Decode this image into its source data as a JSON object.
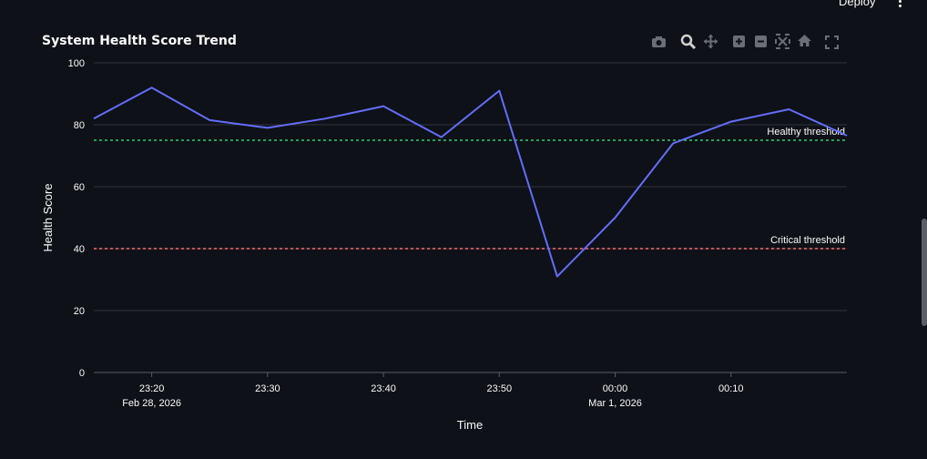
{
  "header": {
    "deploy_label": "Deploy",
    "menu_icon": "kebab-menu-icon"
  },
  "modebar": {
    "icons": [
      "camera-icon",
      "zoom-icon",
      "pan-icon",
      "zoom-in-icon",
      "zoom-out-icon",
      "autoscale-icon",
      "home-icon",
      "fullscreen-icon"
    ]
  },
  "colors": {
    "background": "#0e1117",
    "line": "#636efa",
    "healthy": "#2ecc71",
    "critical": "#ff6b6b",
    "grid": "#31333f"
  },
  "chart_data": {
    "type": "line",
    "title": "System Health Score Trend",
    "xlabel": "Time",
    "ylabel": "Health Score",
    "ylim": [
      0,
      100
    ],
    "yticks": [
      0,
      20,
      40,
      60,
      80,
      100
    ],
    "xrange": [
      "2026-02-28 23:15",
      "2026-03-01 00:20"
    ],
    "xticks": [
      {
        "time": "2026-02-28 23:20",
        "label": "23:20",
        "sublabel": "Feb 28, 2026"
      },
      {
        "time": "2026-02-28 23:30",
        "label": "23:30",
        "sublabel": ""
      },
      {
        "time": "2026-02-28 23:40",
        "label": "23:40",
        "sublabel": ""
      },
      {
        "time": "2026-02-28 23:50",
        "label": "23:50",
        "sublabel": ""
      },
      {
        "time": "2026-03-01 00:00",
        "label": "00:00",
        "sublabel": "Mar 1, 2026"
      },
      {
        "time": "2026-03-01 00:10",
        "label": "00:10",
        "sublabel": ""
      }
    ],
    "grid": true,
    "series": [
      {
        "x": [
          "2026-02-28 23:15",
          "2026-02-28 23:20",
          "2026-02-28 23:25",
          "2026-02-28 23:30",
          "2026-02-28 23:35",
          "2026-02-28 23:40",
          "2026-02-28 23:45",
          "2026-02-28 23:50",
          "2026-02-28 23:55",
          "2026-03-01 00:00",
          "2026-03-01 00:05",
          "2026-03-01 00:10",
          "2026-03-01 00:15",
          "2026-03-01 00:20"
        ],
        "values": [
          82,
          92,
          81.5,
          79,
          82,
          86,
          76,
          91,
          31,
          50,
          74,
          81,
          85,
          76.5
        ]
      }
    ],
    "thresholds": [
      {
        "label": "Healthy threshold",
        "value": 75,
        "color": "#2ecc71"
      },
      {
        "label": "Critical threshold",
        "value": 40,
        "color": "#ff6b6b"
      }
    ]
  }
}
